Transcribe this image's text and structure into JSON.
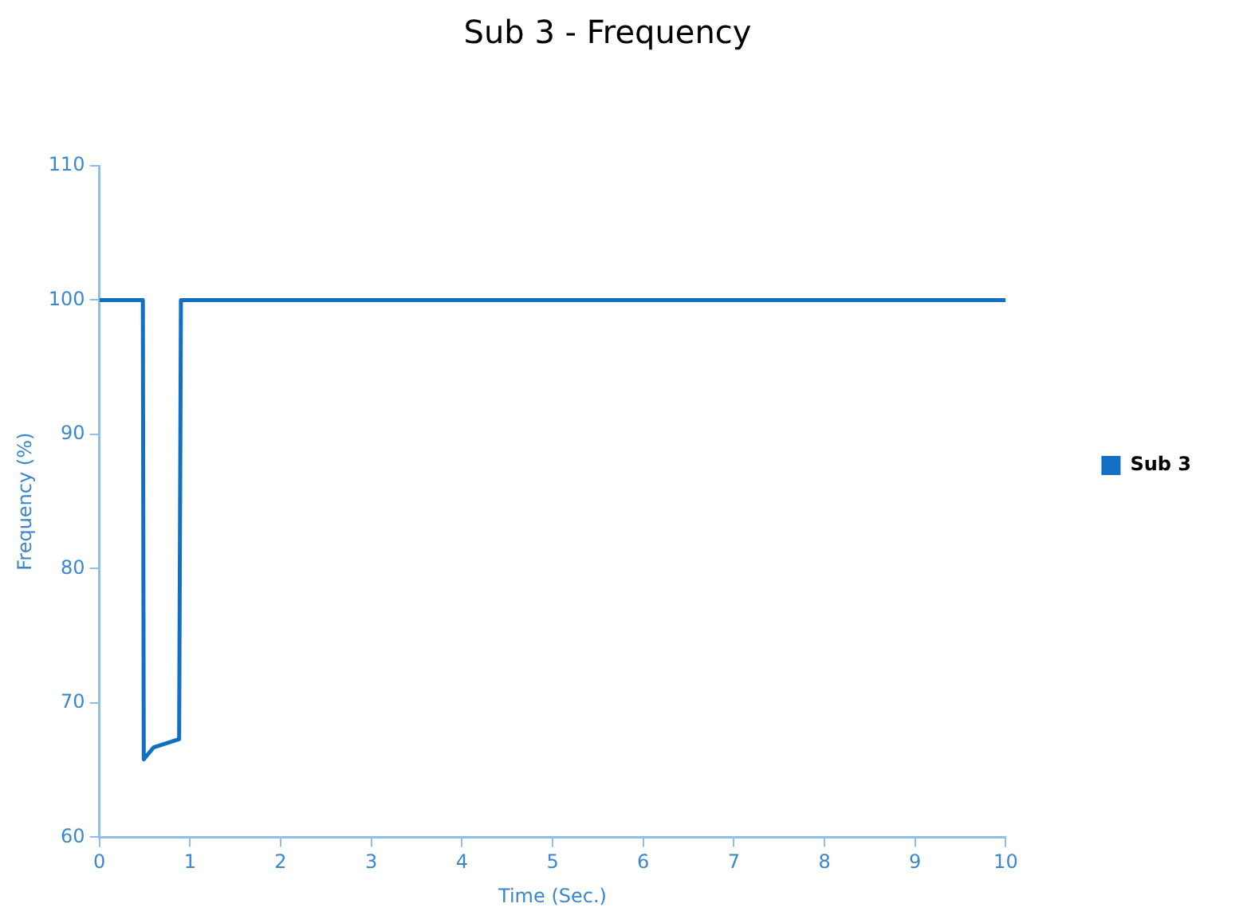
{
  "chart_data": {
    "type": "line",
    "title": "Sub 3 - Frequency",
    "xlabel": "Time (Sec.)",
    "ylabel": "Frequency (%)",
    "series": [
      {
        "name": "Sub 3",
        "color": "#1170c4",
        "x": [
          0,
          0.48,
          0.49,
          0.6,
          0.88,
          0.9,
          10
        ],
        "values": [
          100,
          100,
          65.8,
          66.7,
          67.3,
          100,
          100
        ]
      }
    ],
    "xlim": [
      0,
      10
    ],
    "xticks": [
      0,
      1,
      2,
      3,
      4,
      5,
      6,
      7,
      8,
      9,
      10
    ],
    "ylim": [
      60,
      110
    ],
    "yticks": [
      60,
      70,
      80,
      90,
      100,
      110
    ],
    "grid": false,
    "legend": "right",
    "marker": "none",
    "line_style": "solid"
  }
}
